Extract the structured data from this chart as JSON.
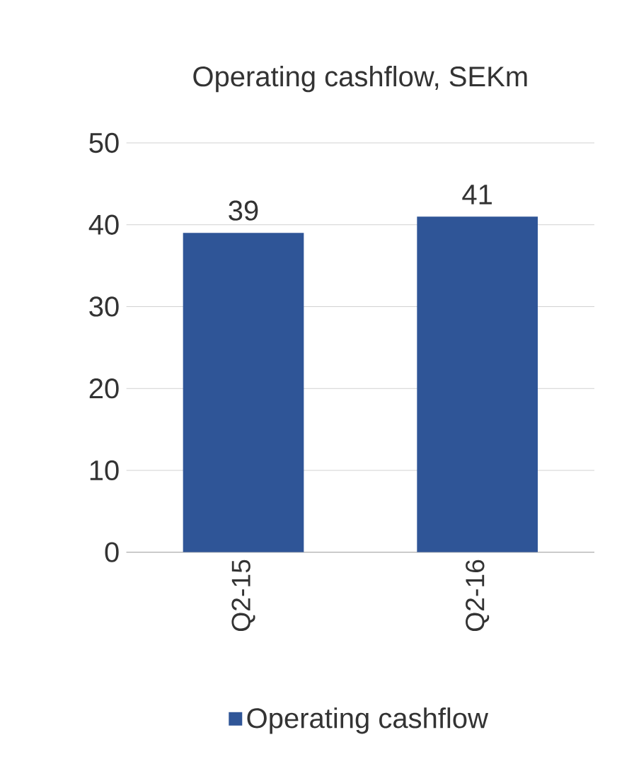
{
  "chart_data": {
    "type": "bar",
    "title": "Operating cashflow, SEKm",
    "categories": [
      "Q2-15",
      "Q2-16"
    ],
    "series": [
      {
        "name": "Operating cashflow",
        "color": "#2f5597",
        "values": [
          39,
          41
        ]
      }
    ],
    "ylim": [
      0,
      50
    ],
    "yticks": [
      0,
      10,
      20,
      30,
      40,
      50
    ],
    "grid": "y",
    "legend": "bottom",
    "data_labels": true
  }
}
